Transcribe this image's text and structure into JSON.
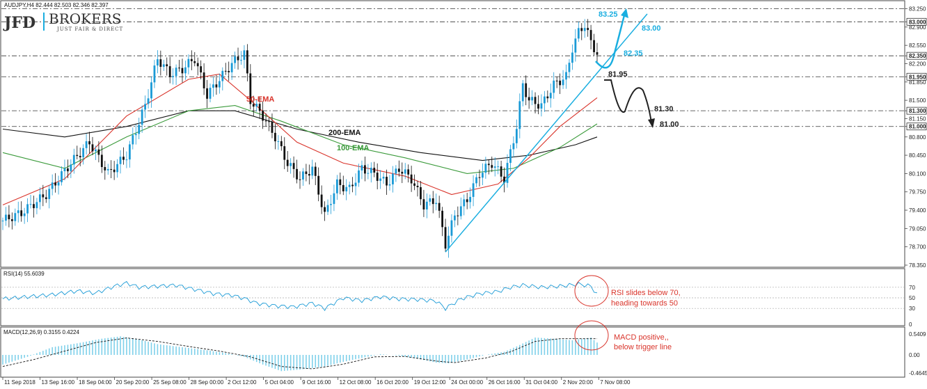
{
  "header": {
    "symbol_line": "AUDJPY,H4  82.444 82.503 82.346 82.397",
    "logo_main": "JFD",
    "logo_brand": "BROKERS",
    "logo_tagline": "JUST FAIR & DIRECT"
  },
  "colors": {
    "bull_candle": "#1a9ad6",
    "bear_candle": "#111111",
    "ema50": "#d9342b",
    "ema100": "#3a9a3a",
    "ema200": "#111111",
    "trendline": "#1aaee0",
    "projection_up": "#1aaee0",
    "projection_down": "#222222",
    "rsi_line": "#1a9ad6",
    "macd_hist": "#7fd0ea",
    "annotation": "#d9342b"
  },
  "chart_data": [
    {
      "type": "candlestick",
      "name_label": "AUDJPY,H4",
      "ylim": [
        78.35,
        83.35
      ],
      "y_ticks": [
        "83.250",
        "83.000",
        "82.900",
        "82.550",
        "82.350",
        "82.200",
        "81.950",
        "81.850",
        "81.500",
        "81.300",
        "81.150",
        "81.000",
        "80.800",
        "80.450",
        "80.100",
        "79.750",
        "79.400",
        "79.050",
        "78.700",
        "78.350"
      ],
      "x_ticks": [
        "11 Sep 2018",
        "13 Sep 16:00",
        "18 Sep 04:00",
        "20 Sep 20:00",
        "25 Sep 08:00",
        "28 Sep 00:00",
        "2 Oct 12:00",
        "5 Oct 04:00",
        "9 Oct 16:00",
        "12 Oct 08:00",
        "16 Oct 20:00",
        "19 Oct 12:00",
        "24 Oct 00:00",
        "26 Oct 16:00",
        "31 Oct 04:00",
        "2 Nov 20:00",
        "7 Nov 08:00"
      ],
      "horizontal_levels": [
        {
          "value": 83.25,
          "label": "83.25",
          "style": "dashdot"
        },
        {
          "value": 83.0,
          "label": "83.00",
          "style": "dashdot"
        },
        {
          "value": 82.35,
          "label": "82.35",
          "style": "dashdot"
        },
        {
          "value": 81.95,
          "label": "81.95",
          "style": "dashdot"
        },
        {
          "value": 81.3,
          "label": "81.30",
          "style": "dashdot"
        },
        {
          "value": 81.0,
          "label": "81.00",
          "style": "dashdot"
        }
      ],
      "highlighted_prices": [
        "83.000",
        "82.350",
        "81.950",
        "81.300",
        "81.000"
      ],
      "ema_labels": {
        "ema50": "50-EMA",
        "ema100": "100-EMA",
        "ema200": "200-EMA"
      },
      "projection_labels": {
        "up_target": "83.25",
        "up_mid": "83.00",
        "up_pull": "82.35",
        "down_start": "81.95",
        "down_mid": "81.30",
        "down_target": "81.00"
      },
      "price_path": [
        [
          0,
          79.2
        ],
        [
          6,
          79.35
        ],
        [
          14,
          79.7
        ],
        [
          22,
          80.3
        ],
        [
          28,
          80.7
        ],
        [
          34,
          80.1
        ],
        [
          40,
          80.45
        ],
        [
          46,
          81.4
        ],
        [
          50,
          82.3
        ],
        [
          54,
          82.0
        ],
        [
          58,
          82.1
        ],
        [
          62,
          82.3
        ],
        [
          66,
          81.6
        ],
        [
          70,
          81.9
        ],
        [
          74,
          82.2
        ],
        [
          78,
          82.4
        ],
        [
          80,
          81.5
        ],
        [
          84,
          81.2
        ],
        [
          88,
          80.8
        ],
        [
          92,
          80.3
        ],
        [
          96,
          80.0
        ],
        [
          100,
          80.2
        ],
        [
          104,
          79.3
        ],
        [
          108,
          79.9
        ],
        [
          112,
          79.8
        ],
        [
          116,
          80.2
        ],
        [
          120,
          80.1
        ],
        [
          124,
          79.9
        ],
        [
          128,
          80.2
        ],
        [
          132,
          80.0
        ],
        [
          136,
          79.5
        ],
        [
          140,
          79.6
        ],
        [
          143,
          78.75
        ],
        [
          146,
          79.3
        ],
        [
          150,
          79.6
        ],
        [
          154,
          80.1
        ],
        [
          158,
          80.3
        ],
        [
          162,
          80.0
        ],
        [
          164,
          80.5
        ],
        [
          166,
          81.0
        ],
        [
          168,
          81.8
        ],
        [
          170,
          81.5
        ],
        [
          174,
          81.4
        ],
        [
          178,
          81.8
        ],
        [
          182,
          81.95
        ],
        [
          184,
          82.5
        ],
        [
          186,
          82.8
        ],
        [
          188,
          82.95
        ],
        [
          190,
          82.6
        ],
        [
          192,
          82.4
        ]
      ],
      "ema50_path": [
        [
          0,
          79.5
        ],
        [
          20,
          80.0
        ],
        [
          40,
          81.2
        ],
        [
          60,
          81.9
        ],
        [
          70,
          82.0
        ],
        [
          80,
          81.5
        ],
        [
          95,
          80.7
        ],
        [
          110,
          80.3
        ],
        [
          130,
          80.05
        ],
        [
          145,
          79.7
        ],
        [
          160,
          79.9
        ],
        [
          170,
          80.4
        ],
        [
          180,
          81.0
        ],
        [
          192,
          81.55
        ]
      ],
      "ema100_path": [
        [
          0,
          80.5
        ],
        [
          20,
          80.2
        ],
        [
          40,
          80.8
        ],
        [
          60,
          81.3
        ],
        [
          75,
          81.4
        ],
        [
          90,
          81.1
        ],
        [
          110,
          80.65
        ],
        [
          130,
          80.4
        ],
        [
          150,
          80.1
        ],
        [
          165,
          80.2
        ],
        [
          180,
          80.6
        ],
        [
          192,
          81.05
        ]
      ],
      "ema200_path": [
        [
          0,
          80.95
        ],
        [
          20,
          80.8
        ],
        [
          40,
          81.0
        ],
        [
          60,
          81.3
        ],
        [
          75,
          81.3
        ],
        [
          95,
          80.95
        ],
        [
          115,
          80.7
        ],
        [
          135,
          80.5
        ],
        [
          155,
          80.35
        ],
        [
          170,
          80.45
        ],
        [
          185,
          80.65
        ],
        [
          192,
          80.8
        ]
      ],
      "trendline": [
        [
          143,
          78.6
        ],
        [
          192,
          81.9
        ]
      ]
    },
    {
      "type": "line",
      "name_label": "RSI(14) 55.6039",
      "ylim": [
        0,
        100
      ],
      "y_ticks": [
        "70",
        "50",
        "30",
        "0"
      ],
      "rsi_path": [
        [
          0,
          48
        ],
        [
          8,
          52
        ],
        [
          16,
          56
        ],
        [
          24,
          63
        ],
        [
          30,
          59
        ],
        [
          36,
          72
        ],
        [
          40,
          78
        ],
        [
          44,
          70
        ],
        [
          50,
          72
        ],
        [
          56,
          74
        ],
        [
          62,
          66
        ],
        [
          68,
          58
        ],
        [
          74,
          55
        ],
        [
          78,
          49
        ],
        [
          82,
          40
        ],
        [
          88,
          35
        ],
        [
          94,
          33
        ],
        [
          100,
          40
        ],
        [
          104,
          30
        ],
        [
          110,
          50
        ],
        [
          116,
          45
        ],
        [
          122,
          52
        ],
        [
          128,
          48
        ],
        [
          134,
          47
        ],
        [
          140,
          44
        ],
        [
          143,
          30
        ],
        [
          148,
          48
        ],
        [
          154,
          58
        ],
        [
          160,
          62
        ],
        [
          164,
          70
        ],
        [
          168,
          74
        ],
        [
          174,
          70
        ],
        [
          180,
          72
        ],
        [
          186,
          76
        ],
        [
          190,
          72
        ],
        [
          192,
          56
        ]
      ],
      "annotation": "RSI slides below 70, heading towards 50"
    },
    {
      "type": "bar",
      "name_label": "MACD(12,26,9) 0.3155 0.4224",
      "ylim": [
        -0.4645,
        0.5409
      ],
      "y_ticks": [
        "0.5409",
        "0.00",
        "-0.4645"
      ],
      "macd_hist": [
        [
          0,
          -0.25
        ],
        [
          8,
          -0.05
        ],
        [
          16,
          0.2
        ],
        [
          24,
          0.3
        ],
        [
          32,
          0.42
        ],
        [
          38,
          0.48
        ],
        [
          44,
          0.4
        ],
        [
          50,
          0.28
        ],
        [
          58,
          0.2
        ],
        [
          66,
          0.12
        ],
        [
          72,
          0.05
        ],
        [
          78,
          -0.05
        ],
        [
          84,
          -0.25
        ],
        [
          90,
          -0.42
        ],
        [
          96,
          -0.38
        ],
        [
          104,
          -0.3
        ],
        [
          110,
          -0.18
        ],
        [
          116,
          -0.08
        ],
        [
          122,
          0.02
        ],
        [
          128,
          -0.02
        ],
        [
          134,
          -0.1
        ],
        [
          140,
          -0.2
        ],
        [
          144,
          -0.22
        ],
        [
          150,
          -0.12
        ],
        [
          156,
          0.0
        ],
        [
          162,
          0.08
        ],
        [
          166,
          0.22
        ],
        [
          172,
          0.45
        ],
        [
          178,
          0.42
        ],
        [
          184,
          0.38
        ],
        [
          190,
          0.45
        ],
        [
          192,
          0.32
        ]
      ],
      "signal_path": [
        [
          0,
          -0.3
        ],
        [
          10,
          -0.12
        ],
        [
          20,
          0.1
        ],
        [
          30,
          0.32
        ],
        [
          40,
          0.44
        ],
        [
          50,
          0.35
        ],
        [
          60,
          0.22
        ],
        [
          70,
          0.1
        ],
        [
          80,
          -0.05
        ],
        [
          90,
          -0.3
        ],
        [
          100,
          -0.36
        ],
        [
          110,
          -0.24
        ],
        [
          120,
          -0.05
        ],
        [
          130,
          -0.04
        ],
        [
          140,
          -0.16
        ],
        [
          146,
          -0.2
        ],
        [
          156,
          -0.08
        ],
        [
          164,
          0.08
        ],
        [
          172,
          0.35
        ],
        [
          180,
          0.42
        ],
        [
          188,
          0.42
        ],
        [
          192,
          0.42
        ]
      ],
      "annotation": "MACD positive, below trigger line"
    }
  ]
}
